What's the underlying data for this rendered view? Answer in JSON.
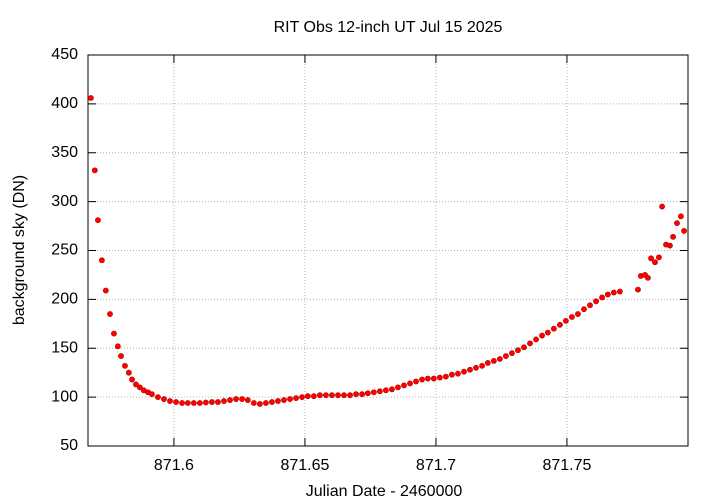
{
  "chart_data": {
    "type": "scatter",
    "title": "RIT Obs 12-inch UT Jul 15 2025",
    "x_label": "Julian Date - 2460000",
    "y_label": "background sky (DN)",
    "color": "#ff0000",
    "grid": true,
    "xlim": [
      871.5672,
      871.7962
    ],
    "ylim": [
      50,
      450
    ],
    "xticks": [
      871.6,
      871.65,
      871.7,
      871.75
    ],
    "yticks": [
      50,
      100,
      150,
      200,
      250,
      300,
      350,
      400,
      450
    ],
    "x": [
      871.5683,
      871.5698,
      871.571,
      871.5725,
      871.574,
      871.5756,
      871.5771,
      871.5786,
      871.5798,
      871.5813,
      871.5828,
      871.584,
      871.5855,
      871.587,
      871.5885,
      871.5901,
      871.5916,
      871.5939,
      871.5962,
      871.5985,
      871.6008,
      871.6031,
      871.6053,
      871.6076,
      871.6099,
      871.6122,
      871.6145,
      871.6168,
      871.6191,
      871.6214,
      871.6237,
      871.626,
      871.6282,
      871.6305,
      871.6328,
      871.6351,
      871.6374,
      871.6397,
      871.642,
      871.6443,
      871.6466,
      871.6489,
      871.6511,
      871.6534,
      871.6557,
      871.658,
      871.6603,
      871.6626,
      871.6649,
      871.6672,
      871.6695,
      871.6718,
      871.674,
      871.6763,
      871.6786,
      871.6809,
      871.6832,
      871.6855,
      871.6878,
      871.6901,
      871.6924,
      871.6947,
      871.6969,
      871.6992,
      871.7015,
      871.7038,
      871.7061,
      871.7084,
      871.7107,
      871.713,
      871.7153,
      871.7176,
      871.7198,
      871.7221,
      871.7244,
      871.7267,
      871.729,
      871.7313,
      871.7336,
      871.7359,
      871.7382,
      871.7405,
      871.7427,
      871.745,
      871.7473,
      871.7496,
      871.7519,
      871.7542,
      871.7565,
      871.7588,
      871.7611,
      871.7634,
      871.7656,
      871.7679,
      871.7702,
      871.7771,
      871.7782,
      871.7798,
      871.7809,
      871.7821,
      871.7836,
      871.7851,
      871.7863,
      871.7878,
      871.7893,
      871.7905,
      871.792,
      871.7935,
      871.7947
    ],
    "values": [
      406,
      332,
      281,
      240,
      209,
      185,
      165,
      152,
      142,
      132,
      125,
      118,
      113,
      110,
      107,
      105,
      103,
      100,
      98,
      96,
      95,
      94,
      94,
      94,
      94,
      94.5,
      95,
      95,
      96,
      97,
      98,
      98,
      97,
      94,
      93,
      94,
      95,
      96,
      97,
      98,
      99,
      100,
      101,
      101,
      102,
      102,
      102,
      102,
      102,
      102,
      103,
      103,
      104,
      105,
      106,
      107,
      108,
      110,
      112,
      114,
      116,
      118,
      119,
      119,
      120,
      121,
      123,
      124,
      126,
      128,
      130,
      132,
      135,
      137,
      139,
      142,
      145,
      148,
      151,
      155,
      159,
      163,
      166,
      170,
      174,
      178,
      182,
      185,
      190,
      194,
      198,
      202,
      205,
      207,
      208,
      210,
      224,
      225,
      222,
      242,
      238,
      243,
      295,
      256,
      255,
      264,
      278,
      285,
      270
    ]
  }
}
